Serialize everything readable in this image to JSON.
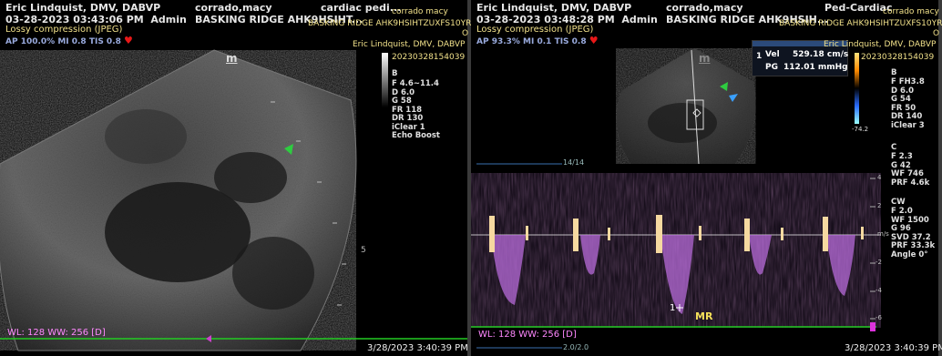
{
  "left": {
    "doctor": "Eric Lindquist, DMV, DABVP",
    "patient": "corrado,macy",
    "exam": "cardiac pedi...",
    "owner_overlay": "corrado macy",
    "clinic": "BASKING RIDGE AHK9HSIHT...",
    "clinic_overlay": "BASKING RIDGE AHK9HSIHTZUXFS10YR",
    "overlay_o": "O",
    "study_overlay": "Eric Lindquist, DMV, DABVP",
    "study_id": "20230328154039",
    "timestamp": "03-28-2023 03:43:06 PM",
    "user": "Admin",
    "compression": "Lossy compression (JPEG)",
    "ap_line": "AP 100.0%  MI 0.8 TIS 0.8",
    "marker_m": "m",
    "mode_b": "B",
    "params": [
      "F 4.6~11.4",
      "D 6.0",
      "G 58",
      "FR 118",
      "DR 130",
      "iClear 1",
      "Echo Boost"
    ],
    "wl": "WL: 128 WW: 256 [D]",
    "footer_date": "3/28/2023 3:40:39 PM",
    "depth_5": "5"
  },
  "right": {
    "doctor": "Eric Lindquist, DMV, DABVP",
    "patient": "corrado,macy",
    "exam": "Ped-Cardiac",
    "owner_overlay": "corrado macy",
    "clinic": "BASKING RIDGE AHK9HSIH...",
    "clinic_overlay": "BASKING RIDGE AHK9HSIHTZUXFS10YR",
    "overlay_o": "O",
    "study_overlay": "Eric Lindquist, DMV, DABVP",
    "study_id": "20230328154039",
    "timestamp": "03-28-2023 03:48:28 PM",
    "user": "Admin",
    "compression": "Lossy compression (JPEG)",
    "ap_line": "AP 93.3%  MI 0.1 TIS 0.8",
    "marker_m": "m",
    "meas_index": "1",
    "vel_label": "Vel",
    "vel_value": "529.18 cm/s",
    "pg_label": "PG",
    "pg_value": "112.01 mmHg",
    "color_scale_min": "-74.2",
    "mode_b": "B",
    "b_params": [
      "F FH3.8",
      "D 6.0",
      "G 54",
      "FR 50",
      "DR 140",
      "iClear 3"
    ],
    "mode_c": "C",
    "c_params": [
      "F 2.3",
      "G 42",
      "WF 746",
      "PRF 4.6k"
    ],
    "mode_cw": "CW",
    "cw_params": [
      "F 2.0",
      "WF 1500",
      "G 96",
      "SVD 37.2",
      "PRF 33.3k",
      "Angle 0°"
    ],
    "frame_counter": "14/14",
    "scale_unit": "m/s",
    "scale_ticks": [
      "4",
      "2",
      "-2",
      "-4",
      "-6"
    ],
    "cursor_label": "1",
    "mr_label": "MR",
    "wl": "WL: 128 WW: 256 [D]",
    "footer_scale": "2.0/2.0",
    "footer_date": "3/28/2023 3:40:39 PM"
  }
}
